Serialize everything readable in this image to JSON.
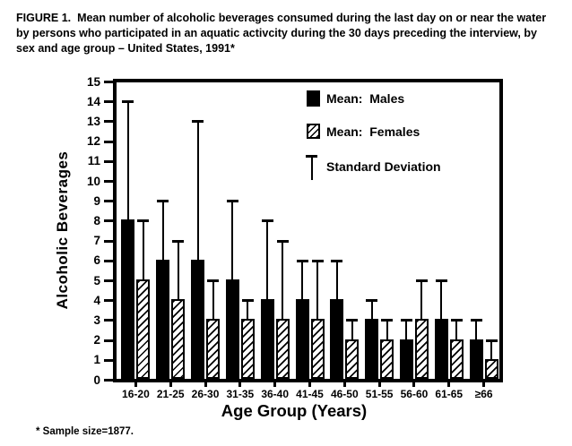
{
  "figure": {
    "title": "FIGURE 1.  Mean number of alcoholic beverages consumed during the last day on or near the water by persons who participated in an aquatic activcity during the 30 days preceding the interview, by sex and age group – United States, 1991*",
    "footnote": "* Sample size=1877."
  },
  "legend": {
    "males": "Mean:  Males",
    "females": "Mean:  Females",
    "sd": "Standard Deviation"
  },
  "chart_data": {
    "type": "bar",
    "title": "Mean alcoholic beverages consumed, by sex and age group",
    "xlabel": "Age Group (Years)",
    "ylabel": "Alcoholic Beverages",
    "ylim": [
      0,
      15
    ],
    "ytick_step": 1,
    "grid": false,
    "legend_position": "top-right inside plot",
    "error_bars": "upward standard-deviation whiskers with end caps",
    "colors": {
      "males_fill": "#000000",
      "females_fill": "white with black diagonal hatch",
      "axis": "#000000",
      "background": "#ffffff"
    },
    "categories": [
      "16-20",
      "21-25",
      "26-30",
      "31-35",
      "36-40",
      "41-45",
      "46-50",
      "51-55",
      "56-60",
      "61-65",
      "≥66"
    ],
    "series": [
      {
        "name": "Mean: Males",
        "style": "solid",
        "values": [
          8,
          6,
          6,
          5,
          4,
          4,
          4,
          3,
          2,
          3,
          2
        ],
        "sd": [
          6,
          3,
          7,
          4,
          4,
          2,
          2,
          1,
          1,
          2,
          1
        ]
      },
      {
        "name": "Mean: Females",
        "style": "hatched",
        "values": [
          5,
          4,
          3,
          3,
          3,
          3,
          2,
          2,
          3,
          2,
          1
        ],
        "sd": [
          3,
          3,
          2,
          1,
          4,
          3,
          1,
          1,
          2,
          1,
          1
        ]
      }
    ]
  }
}
